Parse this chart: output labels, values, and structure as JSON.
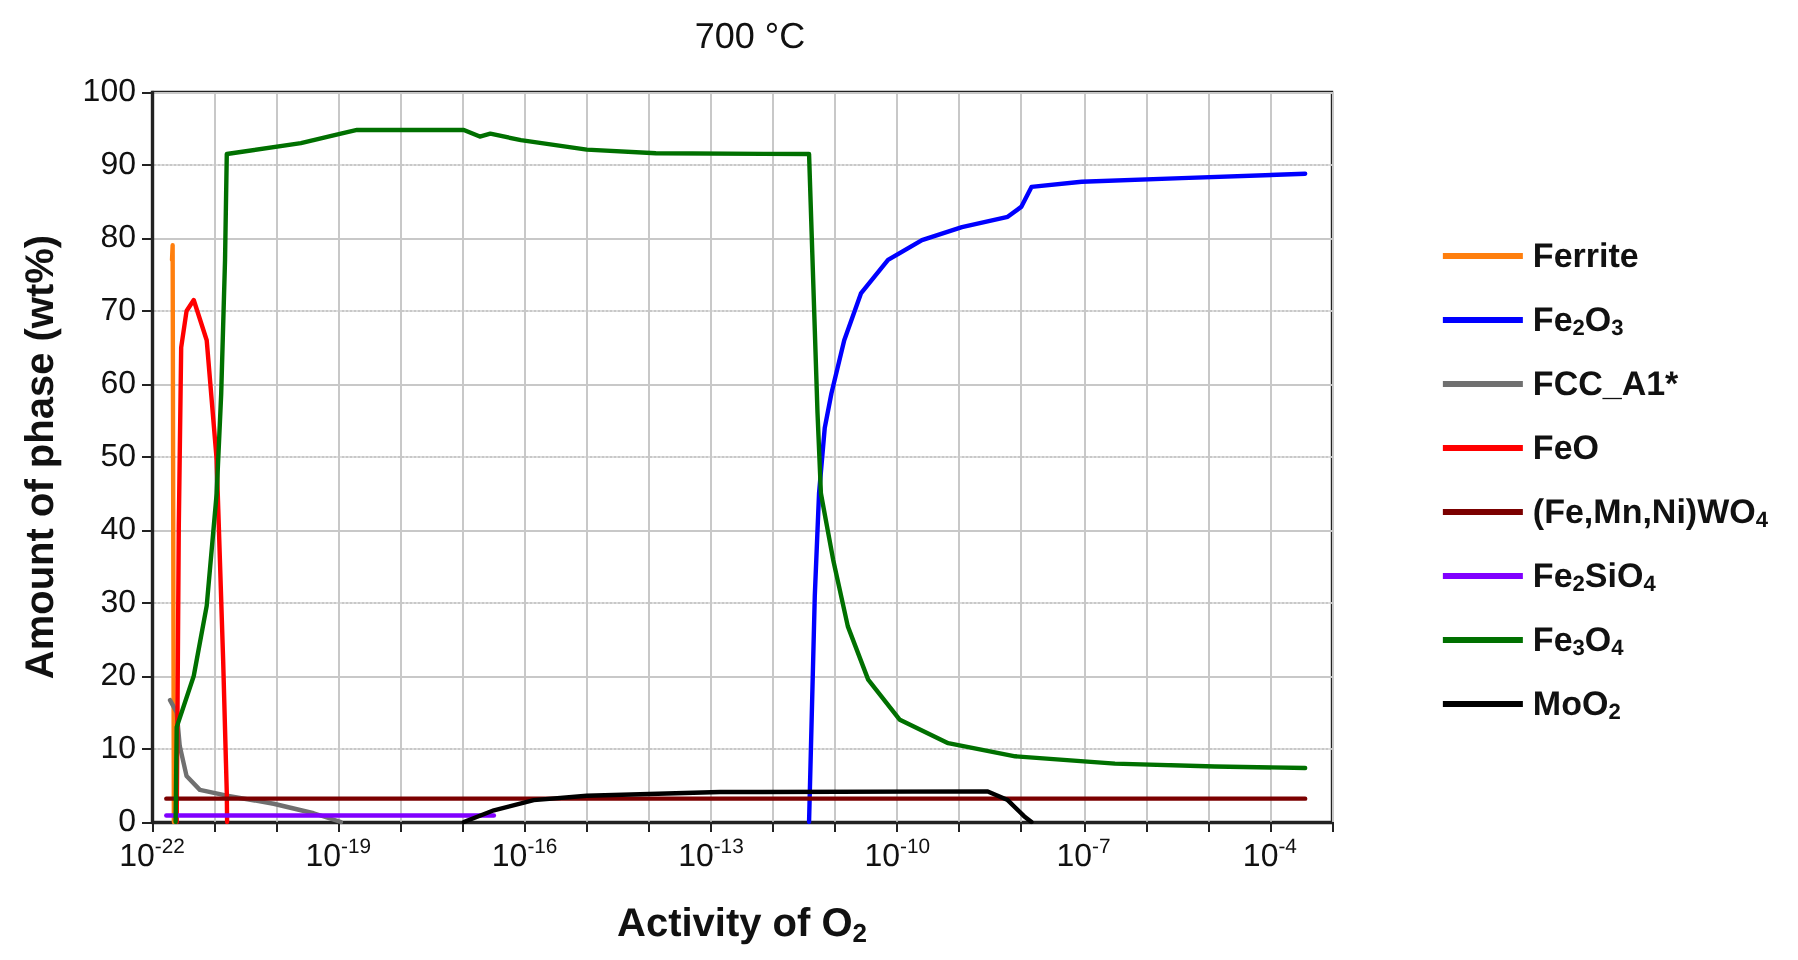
{
  "chart_data": {
    "type": "line",
    "title": "700 °C",
    "xlabel": "Activity of O$_{2}$",
    "ylabel": "Amount of phase (wt%)",
    "log": "x",
    "grid": true,
    "legend": "right",
    "marker": "none",
    "line_style": "solid",
    "xlim": [
      1e-22,
      0.001
    ],
    "xticks": [
      {
        "value": 1e-22,
        "label": "10$^{-22}$"
      },
      {
        "value": 1e-21,
        "label": null
      },
      {
        "value": 1e-20,
        "label": null
      },
      {
        "value": 1e-19,
        "label": "10$^{-19}$"
      },
      {
        "value": 1e-18,
        "label": null
      },
      {
        "value": 1e-17,
        "label": null
      },
      {
        "value": 1e-16,
        "label": "10$^{-16}$"
      },
      {
        "value": 1e-15,
        "label": null
      },
      {
        "value": 1e-14,
        "label": null
      },
      {
        "value": 1e-13,
        "label": "10$^{-13}$"
      },
      {
        "value": 1e-12,
        "label": null
      },
      {
        "value": 1e-11,
        "label": null
      },
      {
        "value": 1e-10,
        "label": "10$^{-10}$"
      },
      {
        "value": 1e-09,
        "label": null
      },
      {
        "value": 1e-08,
        "label": null
      },
      {
        "value": 1e-07,
        "label": "10$^{-7}$"
      },
      {
        "value": 1e-06,
        "label": null
      },
      {
        "value": 1e-05,
        "label": null
      },
      {
        "value": 0.0001,
        "label": "10$^{-4}$"
      },
      {
        "value": 0.001,
        "label": null
      }
    ],
    "ylim": [
      0,
      100
    ],
    "yticks": [
      0,
      10,
      20,
      30,
      40,
      50,
      60,
      70,
      80,
      90,
      100
    ],
    "series": [
      {
        "name": "Ferrite",
        "color": "#ff7f0e",
        "x": [
          2.1e-22,
          2.15e-22,
          2.2e-22,
          2.25e-22
        ],
        "values": [
          77,
          79,
          79,
          0
        ]
      },
      {
        "name": "Fe$_{2}$O$_{3}$",
        "color": "#0000ff",
        "x": [
          3.8e-12,
          4.7e-12,
          5.5e-12,
          6.8e-12,
          8.7e-12,
          1.4e-11,
          2.6e-11,
          7.1e-11,
          2.5e-10,
          1.1e-09,
          6e-09,
          1e-08,
          1.45e-08,
          9.3e-08,
          3.8e-06,
          0.00037
        ],
        "values": [
          0,
          31,
          45,
          54,
          58.7,
          66,
          72.4,
          77,
          79.7,
          81.5,
          82.9,
          84.3,
          87,
          87.7,
          88.2,
          88.8
        ]
      },
      {
        "name": "FCC_A1*",
        "color": "#707070",
        "x": [
          1.95e-22,
          2.5e-22,
          2.8e-22,
          3.6e-22,
          5.9e-22,
          1.6e-21,
          9.1e-21,
          4e-20,
          1.1e-19
        ],
        "values": [
          16.7,
          15,
          10.4,
          6.3,
          4.4,
          3.6,
          2.5,
          1.2,
          0
        ]
      },
      {
        "name": "FeO",
        "color": "#ff0000",
        "x": [
          2.5e-22,
          2.7e-22,
          2.95e-22,
          3.6e-22,
          4.7e-22,
          7.6e-22,
          1.1e-21,
          1.4e-21,
          1.6e-21,
          1.62e-21
        ],
        "values": [
          0,
          40.5,
          65,
          70,
          71.5,
          66,
          49.6,
          22,
          4,
          0
        ]
      },
      {
        "name": "(Fe,Mn,Ni)WO$_{4}$",
        "color": "#7b0000",
        "x": [
          1.7e-22,
          0.00037
        ],
        "values": [
          3.2,
          3.2
        ]
      },
      {
        "name": "Fe$_{2}$SiO$_{4}$",
        "color": "#8000ff",
        "x": [
          1.7e-22,
          3.2e-17
        ],
        "values": [
          0.9,
          0.9
        ]
      },
      {
        "name": "Fe$_{3}$O$_{4}$",
        "color": "#007000",
        "x": [
          2.4e-22,
          2.5e-22,
          4.7e-22,
          7.6e-22,
          1.1e-21,
          1.3e-21,
          1.5e-21,
          1.6e-21,
          2.5e-20,
          1.1e-19,
          2e-19,
          1.05e-17,
          1.9e-17,
          2.8e-17,
          8.7e-17,
          1e-15,
          1.3e-14,
          3.8e-12,
          5.2e-12,
          5.9e-12,
          9.3e-12,
          1.6e-11,
          3.4e-11,
          1.1e-10,
          6.6e-10,
          7.9e-09,
          3.2e-07,
          1.3e-05,
          0.00037
        ],
        "values": [
          0,
          13,
          20,
          29.6,
          45,
          58.6,
          77,
          91.5,
          93,
          94.3,
          94.8,
          94.8,
          93.9,
          94.3,
          93.4,
          92.1,
          91.6,
          91.5,
          56,
          45,
          35.9,
          26.8,
          19.5,
          14,
          10.8,
          9,
          8,
          7.6,
          7.4
        ]
      },
      {
        "name": "MoO$_{2}$",
        "color": "#000000",
        "x": [
          1.05e-17,
          3.2e-17,
          1.4e-16,
          1e-15,
          1.4e-13,
          2.8e-09,
          6e-09,
          1.1e-08,
          1.45e-08
        ],
        "values": [
          0,
          1.6,
          3,
          3.6,
          4.1,
          4.2,
          3,
          0.8,
          0
        ]
      }
    ]
  }
}
